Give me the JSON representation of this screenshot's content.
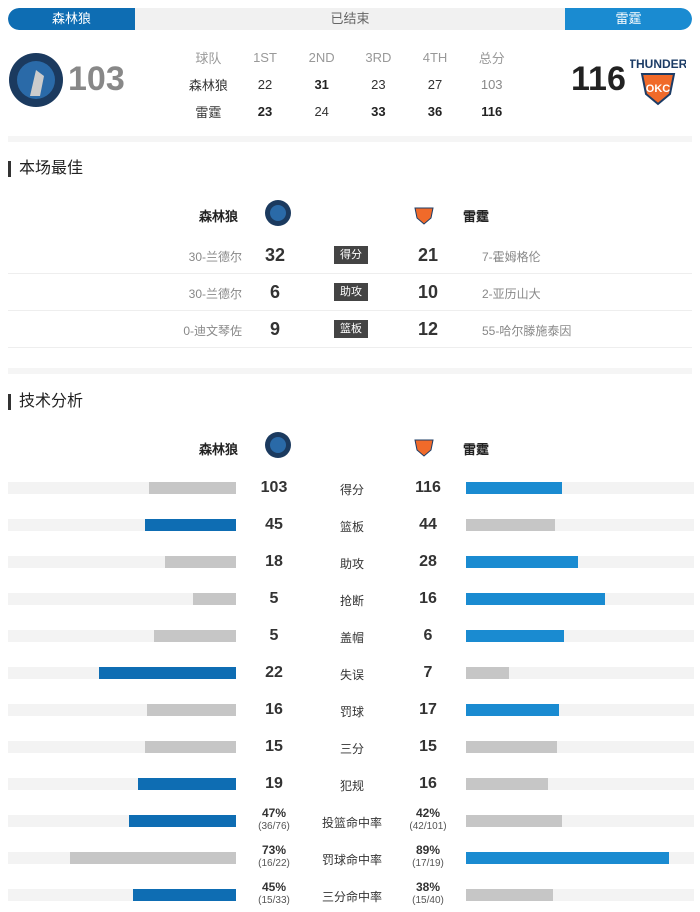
{
  "header": {
    "home_team": "森林狼",
    "status": "已结束",
    "away_team": "雷霆",
    "home_score": "103",
    "away_score": "116"
  },
  "quarters": {
    "headers": [
      "球队",
      "1ST",
      "2ND",
      "3RD",
      "4TH",
      "总分"
    ],
    "rows": [
      {
        "team": "森林狼",
        "scores": [
          "22",
          "31",
          "23",
          "27",
          "103"
        ],
        "bold": [
          false,
          true,
          false,
          false,
          false
        ]
      },
      {
        "team": "雷霆",
        "scores": [
          "23",
          "24",
          "33",
          "36",
          "116"
        ],
        "bold": [
          true,
          false,
          true,
          true,
          true
        ]
      }
    ]
  },
  "best": {
    "title": "本场最佳",
    "home": "森林狼",
    "away": "雷霆",
    "rows": [
      {
        "label": "得分",
        "home_player": "30-兰德尔",
        "home_value": "32",
        "away_value": "21",
        "away_player": "7-霍姆格伦"
      },
      {
        "label": "助攻",
        "home_player": "30-兰德尔",
        "home_value": "6",
        "away_value": "10",
        "away_player": "2-亚历山大"
      },
      {
        "label": "篮板",
        "home_player": "0-迪文琴佐",
        "home_value": "9",
        "away_value": "12",
        "away_player": "55-哈尔滕施泰因"
      }
    ]
  },
  "tech": {
    "title": "技术分析",
    "home": "森林狼",
    "away": "雷霆",
    "rows": [
      {
        "label": "得分",
        "home": "103",
        "away": "116",
        "home_fill": 0.38,
        "away_fill": 0.42,
        "winner": "away"
      },
      {
        "label": "篮板",
        "home": "45",
        "away": "44",
        "home_fill": 0.4,
        "away_fill": 0.39,
        "winner": "home"
      },
      {
        "label": "助攻",
        "home": "18",
        "away": "28",
        "home_fill": 0.31,
        "away_fill": 0.49,
        "winner": "away"
      },
      {
        "label": "抢断",
        "home": "5",
        "away": "16",
        "home_fill": 0.19,
        "away_fill": 0.61,
        "winner": "away"
      },
      {
        "label": "盖帽",
        "home": "5",
        "away": "6",
        "home_fill": 0.36,
        "away_fill": 0.43,
        "winner": "away"
      },
      {
        "label": "失误",
        "home": "22",
        "away": "7",
        "home_fill": 0.6,
        "away_fill": 0.19,
        "winner": "home"
      },
      {
        "label": "罚球",
        "home": "16",
        "away": "17",
        "home_fill": 0.39,
        "away_fill": 0.41,
        "winner": "away"
      },
      {
        "label": "三分",
        "home": "15",
        "away": "15",
        "home_fill": 0.4,
        "away_fill": 0.4,
        "winner": "none"
      },
      {
        "label": "犯规",
        "home": "19",
        "away": "16",
        "home_fill": 0.43,
        "away_fill": 0.36,
        "winner": "home"
      },
      {
        "label": "投篮命中率",
        "home": "47%",
        "home_sub": "(36/76)",
        "away": "42%",
        "away_sub": "(42/101)",
        "home_fill": 0.47,
        "away_fill": 0.42,
        "winner": "home"
      },
      {
        "label": "罚球命中率",
        "home": "73%",
        "home_sub": "(16/22)",
        "away": "89%",
        "away_sub": "(17/19)",
        "home_fill": 0.73,
        "away_fill": 0.89,
        "winner": "away"
      },
      {
        "label": "三分命中率",
        "home": "45%",
        "home_sub": "(15/33)",
        "away": "38%",
        "away_sub": "(15/40)",
        "home_fill": 0.45,
        "away_fill": 0.38,
        "winner": "home"
      }
    ]
  },
  "colors": {
    "home_blue": "#0e6db3",
    "away_blue": "#1a8bd1",
    "gray": "#c6c6c6",
    "track": "#f3f3f3"
  },
  "icons": {
    "home_logo": "timberwolves-logo",
    "away_logo": "thunder-logo"
  }
}
